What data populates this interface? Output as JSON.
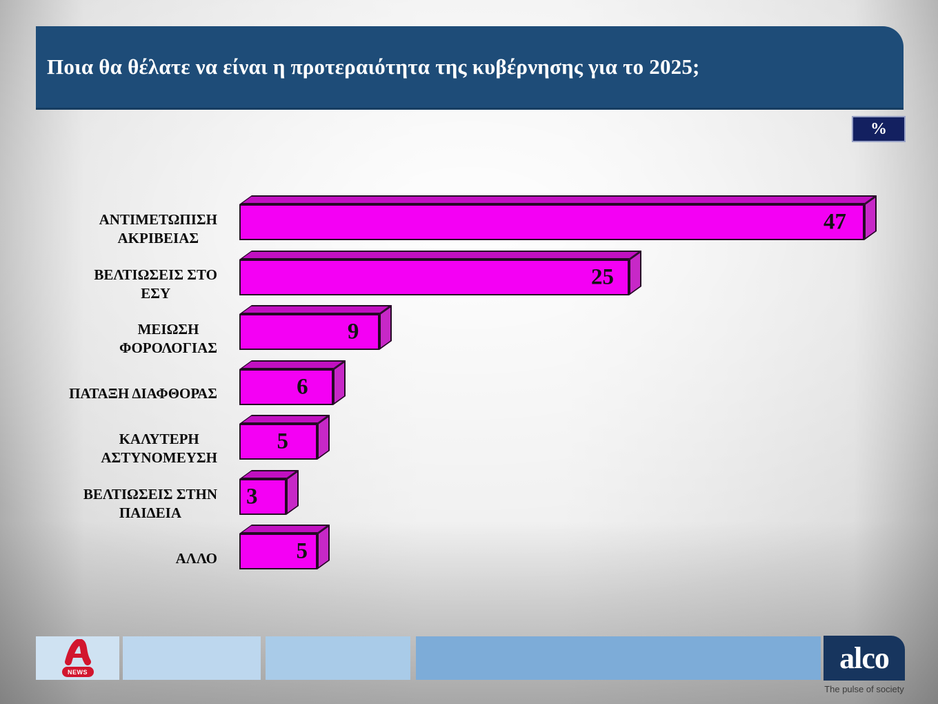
{
  "header": {
    "title": "Ποια θα θέλατε να είναι η προτεραιότητα της κυβέρνησης για το 2025;",
    "bg_color": "#1e4c78"
  },
  "unit_badge": {
    "label": "%",
    "bg_color": "#132060"
  },
  "chart_data": {
    "type": "bar",
    "orientation": "horizontal",
    "title": "Ποια θα θέλατε να είναι η προτεραιότητα της κυβέρνησης για το 2025;",
    "unit": "%",
    "categories": [
      "ΑΝΤΙΜΕΤΩΠΙΣΗ ΑΚΡΙΒΕΙΑΣ",
      "ΒΕΛΤΙΩΣΕΙΣ ΣΤΟ ΕΣΥ",
      "ΜΕΙΩΣΗ ΦΟΡΟΛΟΓΙΑΣ",
      "ΠΑΤΑΞΗ ΔΙΑΦΘΟΡΑΣ",
      "ΚΑΛΥΤΕΡΗ ΑΣΤΥΝΟΜΕΥΣΗ",
      "ΒΕΛΤΙΩΣΕΙΣ ΣΤΗΝ ΠΑΙΔΕΙΑ",
      "ΑΛΛΟ"
    ],
    "values": [
      47,
      25,
      9,
      6,
      5,
      3,
      5
    ],
    "bars": [
      {
        "label_lines": [
          "ΑΝΤΙΜΕΤΩΠΙΣΗ",
          "ΑΚΡΙΒΕΙΑΣ"
        ],
        "value": 47
      },
      {
        "label_lines": [
          "ΒΕΛΤΙΩΣΕΙΣ ΣΤΟ",
          "ΕΣΥ"
        ],
        "value": 25
      },
      {
        "label_lines": [
          "ΜΕΙΩΣΗ",
          "ΦΟΡΟΛΟΓΙΑΣ"
        ],
        "value": 9
      },
      {
        "label_lines": [
          "ΠΑΤΑΞΗ ΔΙΑΦΘΟΡΑΣ"
        ],
        "value": 6
      },
      {
        "label_lines": [
          "ΚΑΛΥΤΕΡΗ",
          "ΑΣΤΥΝΟΜΕΥΣΗ"
        ],
        "value": 5
      },
      {
        "label_lines": [
          "ΒΕΛΤΙΩΣΕΙΣ ΣΤΗΝ",
          "ΠΑΙΔΕΙΑ"
        ],
        "value": 3
      },
      {
        "label_lines": [
          "ΑΛΛΟ"
        ],
        "value": 5
      }
    ],
    "value_labels": "inside-end",
    "grid": false,
    "xlim": [
      0,
      50
    ],
    "bar_color": "#f400f4",
    "bar_top_color": "#c110c1",
    "bar_side_color": "#c728c7",
    "bar_border_color": "#240a24",
    "value_label_color": "#141414"
  },
  "footer": {
    "alpha_news": {
      "badge": "NEWS",
      "brand_color": "#d2152e"
    },
    "alco": {
      "name": "alco",
      "tagline": "The pulse of society",
      "bg_color": "#17355e"
    }
  }
}
